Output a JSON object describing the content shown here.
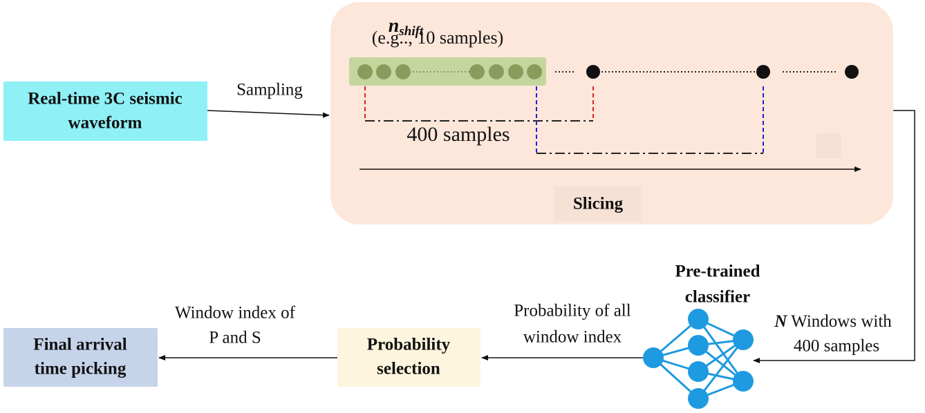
{
  "nodes": {
    "input": {
      "lines": [
        "Real-time 3C seismic",
        "waveform"
      ]
    },
    "slicing": {
      "shift_symbol": "n",
      "shift_subscript": "shift",
      "shift_note": "(e.g.., 10 samples)",
      "window_size": "400 samples",
      "label": "Slicing"
    },
    "classifier": {
      "lines": [
        "Pre-trained",
        "classifier"
      ]
    },
    "selection": {
      "lines": [
        "Probability",
        "selection"
      ]
    },
    "output": {
      "lines": [
        "Final arrival",
        "time picking"
      ]
    }
  },
  "edges": {
    "sampling": {
      "label": "Sampling"
    },
    "windows": {
      "count_symbol": "N",
      "lines": [
        "Windows with",
        "400 samples"
      ]
    },
    "probability": {
      "lines": [
        "Probability of all",
        "window index"
      ]
    },
    "picks": {
      "lines": [
        "Window index of",
        "P and S"
      ]
    }
  }
}
